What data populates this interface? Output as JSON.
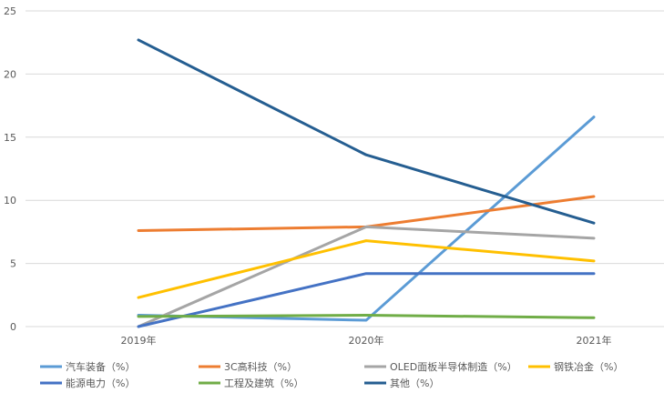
{
  "chart_data": {
    "type": "line",
    "categories": [
      "2019年",
      "2020年",
      "2021年"
    ],
    "ylim": [
      0,
      25
    ],
    "yticks": [
      0,
      5,
      10,
      15,
      20,
      25
    ],
    "grid": true,
    "legend_position": "bottom",
    "series": [
      {
        "name": "汽车装备（%）",
        "color": "#5b9bd5",
        "values": [
          0.9,
          0.5,
          16.6
        ]
      },
      {
        "name": "3C高科技（%）",
        "color": "#ed7d31",
        "values": [
          7.6,
          7.9,
          10.3
        ]
      },
      {
        "name": "OLED面板半导体制造（%）",
        "color": "#a5a5a5",
        "values": [
          0.0,
          7.9,
          7.0
        ]
      },
      {
        "name": "钢铁冶金（%）",
        "color": "#ffc000",
        "values": [
          2.3,
          6.8,
          5.2
        ]
      },
      {
        "name": "能源电力（%）",
        "color": "#4472c4",
        "values": [
          0.0,
          4.2,
          4.2
        ]
      },
      {
        "name": "工程及建筑（%）",
        "color": "#70ad47",
        "values": [
          0.8,
          0.9,
          0.7
        ]
      },
      {
        "name": "其他（%）",
        "color": "#255e91",
        "values": [
          22.7,
          13.6,
          8.2
        ]
      }
    ]
  }
}
